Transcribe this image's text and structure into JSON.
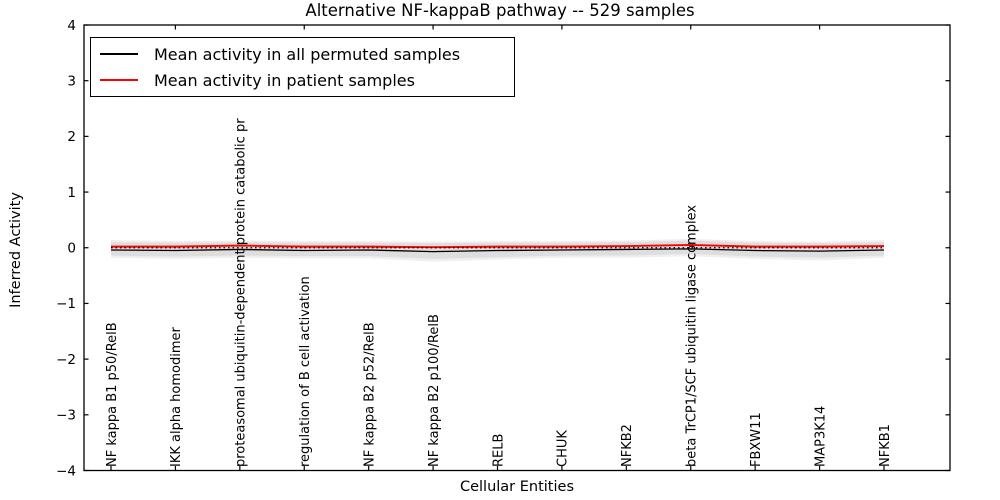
{
  "chart_data": {
    "type": "line",
    "title": "Alternative NF-kappaB pathway -- 529 samples",
    "xlabel": "Cellular Entities",
    "ylabel": "Inferred Activity",
    "ylim": [
      -4,
      4
    ],
    "ytick_labels": [
      "4",
      "3",
      "2",
      "1",
      "0",
      "−1",
      "−2",
      "−3",
      "−4"
    ],
    "grid": false,
    "legend_position": "upper left",
    "categories": [
      "NF kappa B1 p50/RelB",
      "IKK alpha homodimer",
      "proteasomal ubiquitin-dependent protein catabolic pr",
      "regulation of B cell activation",
      "NF kappa B2 p52/RelB",
      "NF kappa B2 p100/RelB",
      "RELB",
      "CHUK",
      "NFKB2",
      "beta TrCP1/SCF ubiquitin ligase complex",
      "FBXW11",
      "MAP3K14",
      "NFKB1"
    ],
    "series": [
      {
        "name": "Mean activity in all permuted samples",
        "color": "#000000",
        "style": "solid",
        "values": [
          -0.04,
          -0.05,
          -0.03,
          -0.05,
          -0.04,
          -0.07,
          -0.05,
          -0.04,
          -0.03,
          -0.02,
          -0.05,
          -0.06,
          -0.04
        ]
      },
      {
        "name": "Mean activity in patient samples",
        "color": "#ff0000",
        "style": "solid",
        "values": [
          0.02,
          0.02,
          0.04,
          0.02,
          0.02,
          0.01,
          0.02,
          0.02,
          0.03,
          0.05,
          0.02,
          0.02,
          0.03
        ]
      }
    ],
    "reference_line": {
      "value": 0,
      "color": "#000000",
      "style": "dotted"
    },
    "bands": [
      {
        "name": "permutation spread outer",
        "color": "#efefef",
        "upper": [
          0.14,
          0.12,
          0.13,
          0.12,
          0.12,
          0.11,
          0.12,
          0.12,
          0.13,
          0.16,
          0.12,
          0.11,
          0.14
        ],
        "lower": [
          -0.18,
          -0.2,
          -0.18,
          -0.19,
          -0.19,
          -0.25,
          -0.21,
          -0.18,
          -0.18,
          -0.15,
          -0.2,
          -0.23,
          -0.18
        ]
      },
      {
        "name": "permutation spread inner",
        "color": "#dedede",
        "upper": [
          0.1,
          0.09,
          0.1,
          0.09,
          0.09,
          0.08,
          0.09,
          0.09,
          0.1,
          0.13,
          0.09,
          0.08,
          0.1
        ],
        "lower": [
          -0.14,
          -0.16,
          -0.14,
          -0.15,
          -0.15,
          -0.2,
          -0.17,
          -0.14,
          -0.14,
          -0.11,
          -0.16,
          -0.18,
          -0.14
        ]
      }
    ]
  }
}
